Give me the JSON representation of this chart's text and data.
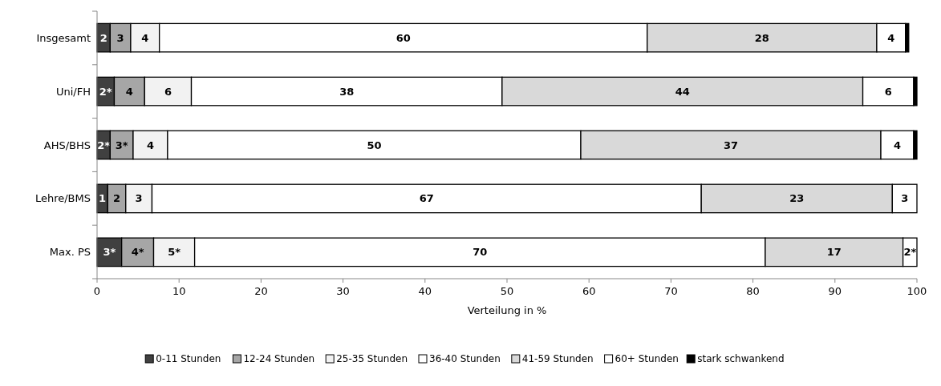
{
  "chart_data": {
    "type": "bar",
    "orientation": "horizontal",
    "stacked": true,
    "xlabel": "Verteilung in %",
    "categories": [
      "Insgesamt",
      "Uni/FH",
      "AHS/BHS",
      "Lehre/BMS",
      "Max. PS"
    ],
    "xlim": [
      0,
      100
    ],
    "xticks": [
      0,
      10,
      20,
      30,
      40,
      50,
      60,
      70,
      80,
      90,
      100
    ],
    "grid": false,
    "legend": "bottom",
    "series": [
      {
        "name": "0-11 Stunden",
        "color": "#404040",
        "values": [
          1.6,
          2.1,
          1.6,
          1.3,
          3.0
        ],
        "value_labels": [
          "2",
          "2*",
          "2*",
          "1",
          "3*"
        ]
      },
      {
        "name": "12-24 Stunden",
        "color": "#a6a6a6",
        "values": [
          2.5,
          3.7,
          2.8,
          2.2,
          3.9
        ],
        "value_labels": [
          "3",
          "4",
          "3*",
          "2",
          "4*"
        ]
      },
      {
        "name": "25-35 Stunden",
        "color": "#f2f2f2",
        "values": [
          3.5,
          5.7,
          4.2,
          3.2,
          5.0
        ],
        "value_labels": [
          "4",
          "6",
          "4",
          "3",
          "5*"
        ]
      },
      {
        "name": "36-40 Stunden",
        "color": "#ffffff",
        "values": [
          59.5,
          37.9,
          50.4,
          67.0,
          69.6
        ],
        "value_labels": [
          "60",
          "38",
          "50",
          "67",
          "70"
        ]
      },
      {
        "name": "41-59 Stunden",
        "color": "#d9d9d9",
        "values": [
          28.0,
          44.0,
          36.6,
          23.3,
          16.8
        ],
        "value_labels": [
          "28",
          "44",
          "37",
          "23",
          "17"
        ]
      },
      {
        "name": "60+ Stunden",
        "color": "#ffffff",
        "values": [
          3.5,
          6.2,
          4.0,
          3.0,
          1.7
        ],
        "value_labels": [
          "4",
          "6",
          "4",
          "3",
          "2*"
        ]
      },
      {
        "name": "stark schwankend",
        "color": "#000000",
        "values": [
          0.4,
          0.4,
          0.4,
          0,
          0
        ],
        "value_labels": [
          null,
          null,
          null,
          null,
          null
        ]
      }
    ]
  }
}
